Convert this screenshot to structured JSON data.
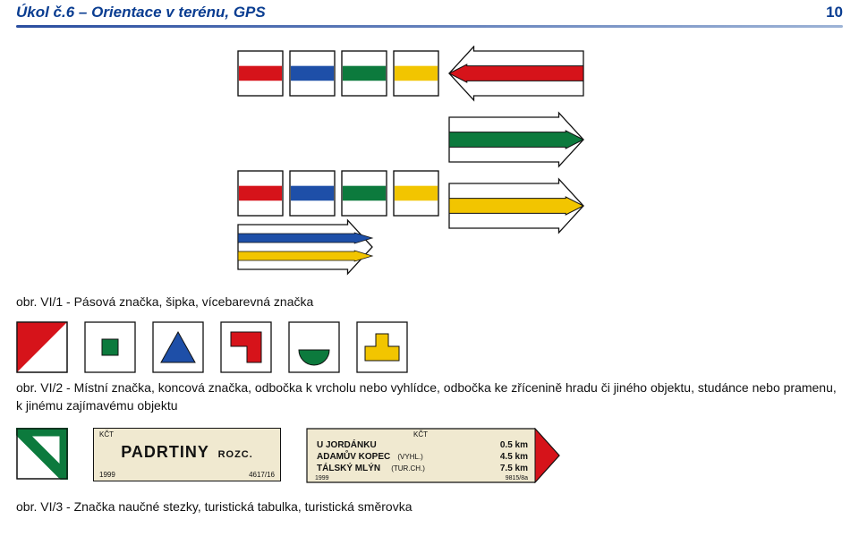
{
  "header": {
    "title": "Úkol č.6 – Orientace v terénu, GPS",
    "page_number": "10"
  },
  "captions": {
    "c1": "obr. VI/1 - Pásová značka, šipka, vícebarevná značka",
    "c2": "obr. VI/2 - Místní značka, koncová značka, odbočka k vrcholu nebo vyhlídce, odbočka ke zřícenině hradu či jiného objektu, studánce nebo pramenu, k jinému zajímavému objektu",
    "c3": "obr. VI/3 - Značka naučné stezky, turistická tabulka, turistická směrovka"
  },
  "colors": {
    "red": "#d6131a",
    "blue": "#1e4fa8",
    "green": "#0c7a3d",
    "yellow": "#f2c500",
    "white": "#ffffff",
    "black": "#111111",
    "plate_bg": "#f0e9d0",
    "plate_border": "#111111",
    "header_blue": "#0a3d91"
  },
  "figure1": {
    "row1_squares": [
      "red",
      "blue",
      "green",
      "yellow"
    ],
    "arrow_left": "red",
    "row3_squares": [
      "red",
      "blue",
      "green",
      "yellow"
    ],
    "arrow_right1": "green",
    "multicolor": [
      "blue",
      "yellow"
    ],
    "arrow_right2": "yellow"
  },
  "figure2": [
    "diag_red",
    "square_green",
    "triangle_blue",
    "angle_red",
    "semicircle_green",
    "anvil_yellow"
  ],
  "figure3": {
    "stripe_color": "green",
    "panel1": {
      "top": "KČT",
      "main": "PADRTINY",
      "sub": "ROZC.",
      "bl": "1999",
      "br": "4617/16"
    },
    "panel2": {
      "top": "KČT",
      "rows": [
        {
          "name": "U JORDÁNKU",
          "note": "",
          "dist": "0.5 km"
        },
        {
          "name": "ADAMŮV KOPEC",
          "note": "(VYHL.)",
          "dist": "4.5 km"
        },
        {
          "name": "TÁLSKÝ MLÝN",
          "note": "(TUR.CH.)",
          "dist": "7.5 km"
        }
      ],
      "bl": "1999",
      "br": "9815/8a"
    }
  }
}
